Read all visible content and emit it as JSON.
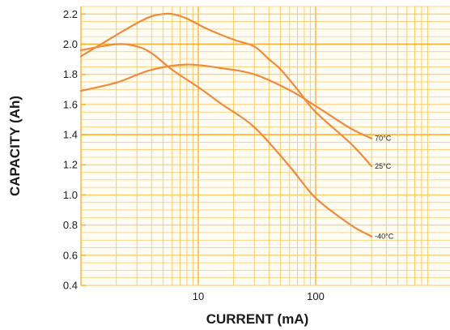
{
  "chart_data": {
    "type": "line",
    "title": "",
    "xlabel": "CURRENT (mA)",
    "ylabel": "CAPACITY (Ah)",
    "x_scale": "log",
    "xlim": [
      1,
      1000
    ],
    "ylim": [
      0.4,
      2.25
    ],
    "x_tick_labels": [
      {
        "value": 10,
        "label": "10"
      },
      {
        "value": 100,
        "label": "100"
      }
    ],
    "y_tick_labels": [
      {
        "value": 0.4,
        "label": "0.4"
      },
      {
        "value": 0.6,
        "label": "0.6"
      },
      {
        "value": 0.8,
        "label": "0.8"
      },
      {
        "value": 1.0,
        "label": "1.0"
      },
      {
        "value": 1.2,
        "label": "1.2"
      },
      {
        "value": 1.4,
        "label": "1.4"
      },
      {
        "value": 1.6,
        "label": "1.6"
      },
      {
        "value": 1.8,
        "label": "1.8"
      },
      {
        "value": 2.0,
        "label": "2.0"
      },
      {
        "value": 2.2,
        "label": "2.2"
      }
    ],
    "grid": true,
    "legend": "none; series labeled at right end of lines",
    "colors": {
      "background": "#fffdf3",
      "grid": "#fdc75c",
      "grid_major": "#f9b233",
      "line": "#f08a3c",
      "text": "#1a1a1a"
    },
    "series": [
      {
        "name": "70°C",
        "x": [
          1,
          2,
          4,
          8,
          16,
          30,
          60,
          100,
          200,
          300
        ],
        "y": [
          1.69,
          1.745,
          1.83,
          1.865,
          1.84,
          1.8,
          1.695,
          1.59,
          1.44,
          1.375
        ]
      },
      {
        "name": "25°C",
        "x": [
          1,
          2,
          3,
          4,
          5,
          6,
          8,
          12,
          20,
          30,
          40,
          50,
          70,
          100,
          200,
          300
        ],
        "y": [
          1.92,
          2.06,
          2.14,
          2.185,
          2.2,
          2.2,
          2.17,
          2.1,
          2.03,
          1.985,
          1.9,
          1.835,
          1.7,
          1.55,
          1.34,
          1.19
        ]
      },
      {
        "name": "-40°C",
        "x": [
          1,
          2,
          3,
          4,
          6,
          10,
          16,
          30,
          60,
          100,
          200,
          300
        ],
        "y": [
          1.96,
          2.0,
          1.985,
          1.94,
          1.83,
          1.715,
          1.6,
          1.45,
          1.19,
          0.98,
          0.8,
          0.725
        ]
      }
    ]
  }
}
